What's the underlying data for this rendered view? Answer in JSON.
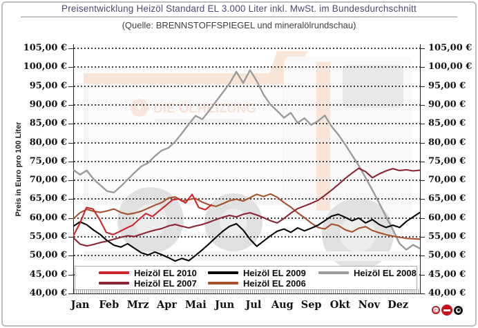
{
  "title": "Preisentwicklung Heizöl Standard EL 3.000 Liter inkl. MwSt. im Bundesdurchschnitt",
  "subtitle": "(Quelle: BRENNSTOFFSPIEGEL und mineralölrundschau)",
  "watermark": {
    "brand": "DIE ÖLHEIZUNG"
  },
  "chart_data": {
    "type": "line",
    "title": "Preisentwicklung Heizöl Standard EL 3.000 Liter inkl. MwSt. im Bundesdurchschnitt",
    "subtitle": "(Quelle: BRENNSTOFFSPIEGEL und mineralölrundschau)",
    "ylabel": "Preis in Euro pro 100 Liter",
    "xlabel": "",
    "ylim": [
      40,
      105
    ],
    "ytick_step": 5,
    "grid": "horizontal-dotted",
    "legend_position": "bottom-inside",
    "x_categories": [
      "Jan",
      "Feb",
      "Mrz",
      "Apr",
      "Mai",
      "Jun",
      "Jul",
      "Aug",
      "Sep",
      "Okt",
      "Nov",
      "Dez"
    ],
    "yticks": [
      {
        "value": 105,
        "label": "105,00 €"
      },
      {
        "value": 100,
        "label": "100,00 €"
      },
      {
        "value": 95,
        "label": "95,00 €"
      },
      {
        "value": 90,
        "label": "90,00 €"
      },
      {
        "value": 85,
        "label": "85,00 €"
      },
      {
        "value": 80,
        "label": "80,00 €"
      },
      {
        "value": 75,
        "label": "75,00 €"
      },
      {
        "value": 70,
        "label": "70,00 €"
      },
      {
        "value": 65,
        "label": "65,00 €"
      },
      {
        "value": 60,
        "label": "60,00 €"
      },
      {
        "value": 55,
        "label": "55,00 €"
      },
      {
        "value": 50,
        "label": "50,00 €"
      },
      {
        "value": 45,
        "label": "45,00 €"
      },
      {
        "value": 40,
        "label": "40,00 €"
      }
    ],
    "series": [
      {
        "name": "Heizöl EL 2010",
        "color": "#cc2529",
        "z": 5,
        "span": 0.4,
        "values": [
          55.2,
          58.6,
          62.8,
          62.4,
          59.6,
          56.2,
          55.6,
          56.4,
          57.3,
          58.1,
          59.7,
          61.2,
          60.4,
          61.9,
          63.3,
          64.8,
          65.1,
          64.0,
          66.3,
          62.8,
          62.2,
          63.6
        ]
      },
      {
        "name": "Heizöl EL 2009",
        "color": "#000000",
        "z": 4,
        "span": 1,
        "values": [
          57.8,
          59.0,
          58.2,
          56.8,
          55.6,
          54.0,
          52.8,
          52.3,
          53.2,
          52.0,
          50.8,
          50.2,
          51.0,
          50.3,
          49.5,
          48.6,
          49.3,
          48.7,
          50.1,
          51.6,
          53.2,
          54.9,
          56.5,
          57.8,
          58.5,
          56.8,
          54.4,
          52.5,
          53.9,
          55.3,
          56.5,
          57.1,
          56.2,
          57.4,
          56.6,
          57.3,
          58.1,
          59.3,
          60.5,
          61.0,
          60.2,
          59.3,
          60.0,
          58.7,
          59.6,
          58.3,
          57.5,
          58.1,
          57.5,
          59.1,
          60.3,
          61.5
        ]
      },
      {
        "name": "Heizöl EL 2008",
        "color": "#9a9a9a",
        "z": 1,
        "span": 1,
        "values": [
          72.8,
          71.5,
          72.6,
          70.3,
          68.7,
          67.1,
          66.8,
          68.4,
          70.2,
          72.0,
          73.7,
          74.6,
          76.4,
          77.9,
          78.6,
          80.3,
          82.5,
          84.9,
          87.1,
          86.2,
          88.5,
          90.9,
          93.3,
          95.7,
          98.8,
          95.8,
          99.2,
          96.3,
          92.7,
          90.1,
          88.4,
          86.6,
          87.9,
          85.2,
          86.5,
          84.7,
          85.7,
          87.2,
          84.3,
          82.1,
          79.5,
          76.7,
          73.9,
          70.7,
          67.4,
          64.0,
          60.4,
          57.0,
          53.2,
          51.6,
          52.9,
          51.9
        ]
      },
      {
        "name": "Heizöl EL 2007",
        "color": "#8b2332",
        "z": 3,
        "span": 1,
        "values": [
          54.8,
          53.1,
          52.6,
          53.0,
          53.5,
          53.9,
          54.4,
          54.9,
          55.3,
          55.1,
          55.7,
          56.3,
          56.8,
          57.2,
          57.9,
          58.3,
          57.8,
          57.4,
          57.9,
          58.3,
          58.9,
          59.6,
          60.2,
          60.7,
          60.3,
          61.0,
          61.4,
          60.8,
          60.1,
          59.3,
          58.7,
          59.9,
          61.3,
          62.5,
          63.2,
          63.9,
          64.7,
          66.0,
          67.4,
          68.9,
          70.5,
          71.9,
          73.2,
          72.3,
          70.7,
          71.7,
          72.5,
          73.1,
          72.6,
          72.8,
          72.5,
          72.7
        ]
      },
      {
        "name": "Heizöl EL 2006",
        "color": "#a8502c",
        "z": 2,
        "span": 1,
        "values": [
          59.8,
          61.4,
          62.3,
          61.8,
          61.5,
          61.9,
          62.4,
          61.5,
          61.0,
          61.3,
          61.8,
          62.6,
          63.4,
          64.1,
          65.3,
          65.6,
          64.5,
          64.9,
          65.2,
          64.2,
          63.5,
          63.1,
          63.8,
          64.6,
          65.0,
          64.5,
          65.4,
          66.3,
          65.7,
          66.4,
          65.5,
          64.1,
          62.9,
          61.4,
          60.1,
          58.7,
          57.5,
          57.1,
          58.4,
          58.0,
          56.9,
          56.3,
          57.3,
          57.7,
          56.7,
          56.1,
          55.6,
          55.2,
          54.9,
          54.6,
          54.5,
          54.4
        ]
      }
    ]
  },
  "logo": {
    "c1": "©",
    "c2": "",
    "c3": ""
  }
}
